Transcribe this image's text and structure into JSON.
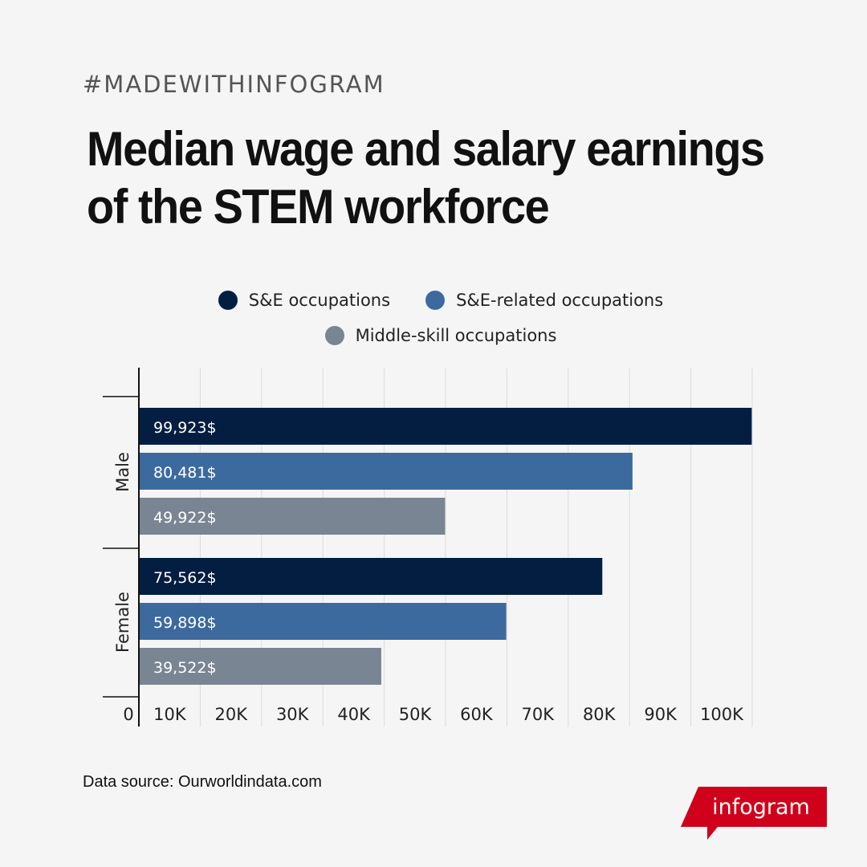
{
  "header": {
    "hashtag": "#MADEWITHINFOGRAM",
    "title": "Median wage and salary earnings of the STEM workforce"
  },
  "footer": {
    "source": "Data source: Ourworldindata.com",
    "logo_text": "infogram"
  },
  "colors": {
    "se": "#041e42",
    "se_related": "#3d6a9e",
    "middle_skill": "#7a8593",
    "brand_red": "#d0021b"
  },
  "chart_data": {
    "type": "bar",
    "orientation": "horizontal",
    "categories": [
      "Male",
      "Female"
    ],
    "series": [
      {
        "name": "S&E occupations",
        "values": [
          99923,
          75562
        ],
        "labels": [
          "99,923$",
          "75,562$"
        ],
        "color": "#041e42"
      },
      {
        "name": "S&E-related occupations",
        "values": [
          80481,
          59898
        ],
        "labels": [
          "80,481$",
          "59,898$"
        ],
        "color": "#3d6a9e"
      },
      {
        "name": "Middle-skill occupations",
        "values": [
          49922,
          39522
        ],
        "labels": [
          "49,922$",
          "39,522$"
        ],
        "color": "#7a8593"
      }
    ],
    "xlim": [
      0,
      100000
    ],
    "xticks": [
      0,
      10000,
      20000,
      30000,
      40000,
      50000,
      60000,
      70000,
      80000,
      90000,
      100000
    ],
    "xtick_labels": [
      "0",
      "10K",
      "20K",
      "30K",
      "40K",
      "50K",
      "60K",
      "70K",
      "80K",
      "90K",
      "100K"
    ],
    "grid": true,
    "legend_position": "top"
  }
}
